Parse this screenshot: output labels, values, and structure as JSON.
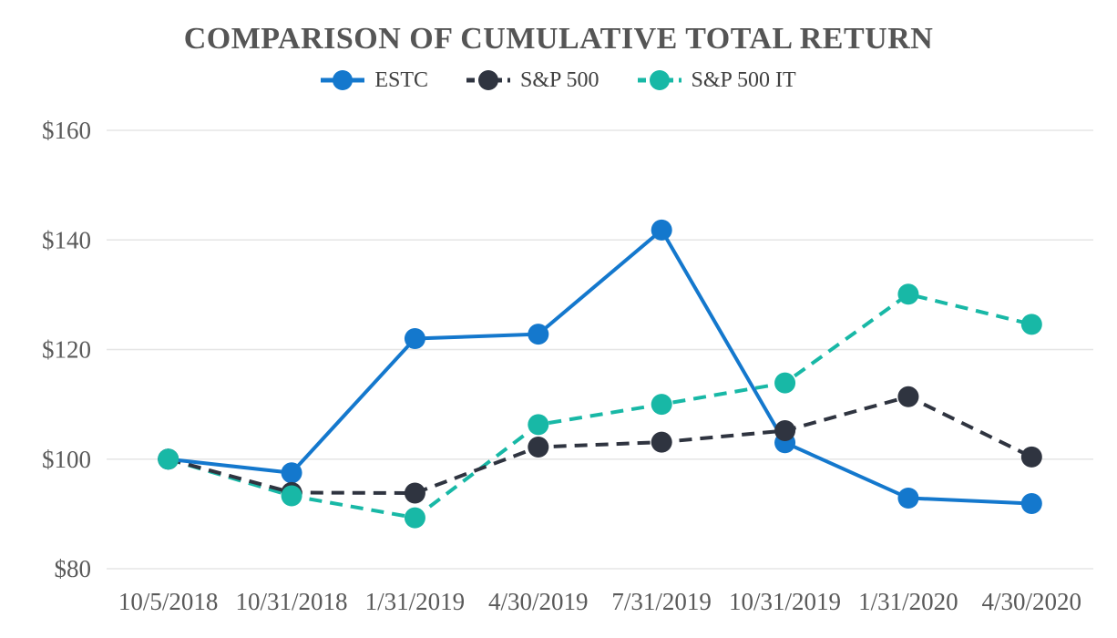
{
  "title": "COMPARISON OF CUMULATIVE TOTAL RETURN",
  "colors": {
    "background": "#ffffff",
    "gridline": "#e5e5e5",
    "axis_label": "#595959",
    "title_text": "#555555",
    "legend_text": "#404040",
    "estc_blue": "#1478cd",
    "sp500_dark": "#2f3440",
    "sp500it_teal": "#18b8a6"
  },
  "chart_data": {
    "type": "line",
    "title": "COMPARISON OF CUMULATIVE TOTAL RETURN",
    "xlabel": "",
    "ylabel": "",
    "ylim": [
      80,
      160
    ],
    "ytick_step": 20,
    "ytick_prefix": "$",
    "grid": "horizontal",
    "legend_position": "top",
    "categories": [
      "10/5/2018",
      "10/31/2018",
      "1/31/2019",
      "4/30/2019",
      "7/31/2019",
      "10/31/2019",
      "1/31/2020",
      "4/30/2020"
    ],
    "series": [
      {
        "id": "estc",
        "name": "ESTC",
        "color": "#1478cd",
        "style": "solid",
        "values": [
          100.0,
          97.5,
          122.0,
          122.8,
          141.8,
          103.0,
          92.9,
          91.9
        ]
      },
      {
        "id": "sp500",
        "name": "S&P 500",
        "color": "#2f3440",
        "style": "dashed",
        "values": [
          100.0,
          93.9,
          93.8,
          102.2,
          103.1,
          105.2,
          111.4,
          100.4
        ]
      },
      {
        "id": "sp500it",
        "name": "S&P 500 IT",
        "color": "#18b8a6",
        "style": "dashed",
        "values": [
          100.0,
          93.3,
          89.3,
          106.3,
          110.0,
          113.9,
          130.1,
          124.6
        ]
      }
    ]
  }
}
